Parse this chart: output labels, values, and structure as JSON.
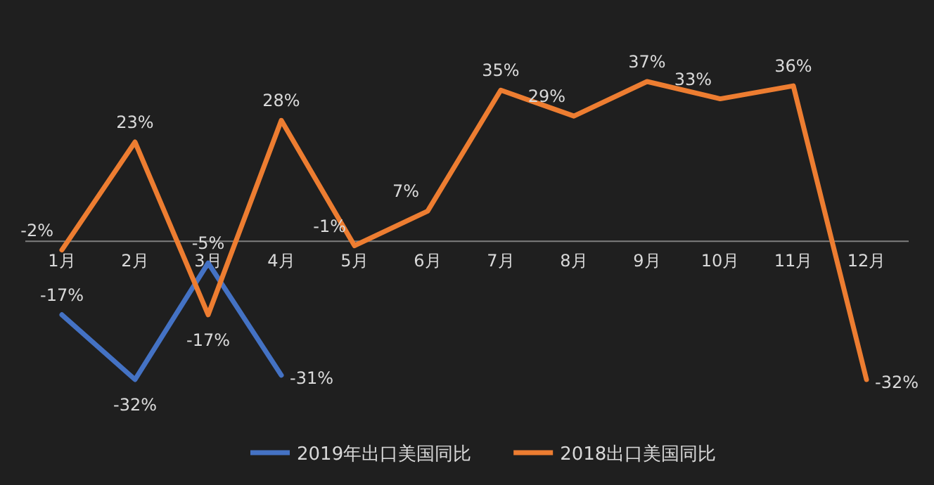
{
  "chart_data": {
    "type": "line",
    "categories": [
      "1月",
      "2月",
      "3月",
      "4月",
      "5月",
      "6月",
      "7月",
      "8月",
      "9月",
      "10月",
      "11月",
      "12月"
    ],
    "series": [
      {
        "name": "2019年出口美国同比",
        "color": "#4472c4",
        "values": [
          -17,
          -32,
          -5,
          -31,
          null,
          null,
          null,
          null,
          null,
          null,
          null,
          null
        ],
        "value_labels": [
          "-17%",
          "-32%",
          "-5%",
          "-31%",
          null,
          null,
          null,
          null,
          null,
          null,
          null,
          null
        ]
      },
      {
        "name": "2018出口美国同比",
        "color": "#ed7d31",
        "values": [
          -2,
          23,
          -17,
          28,
          -1,
          7,
          35,
          29,
          37,
          33,
          36,
          -32
        ],
        "value_labels": [
          "-2%",
          "23%",
          "-17%",
          "28%",
          "-1%",
          "7%",
          "35%",
          "29%",
          "37%",
          "33%",
          "36%",
          "-32%"
        ]
      }
    ],
    "legend": "bottom",
    "marker": "none",
    "line_style": "solid"
  }
}
